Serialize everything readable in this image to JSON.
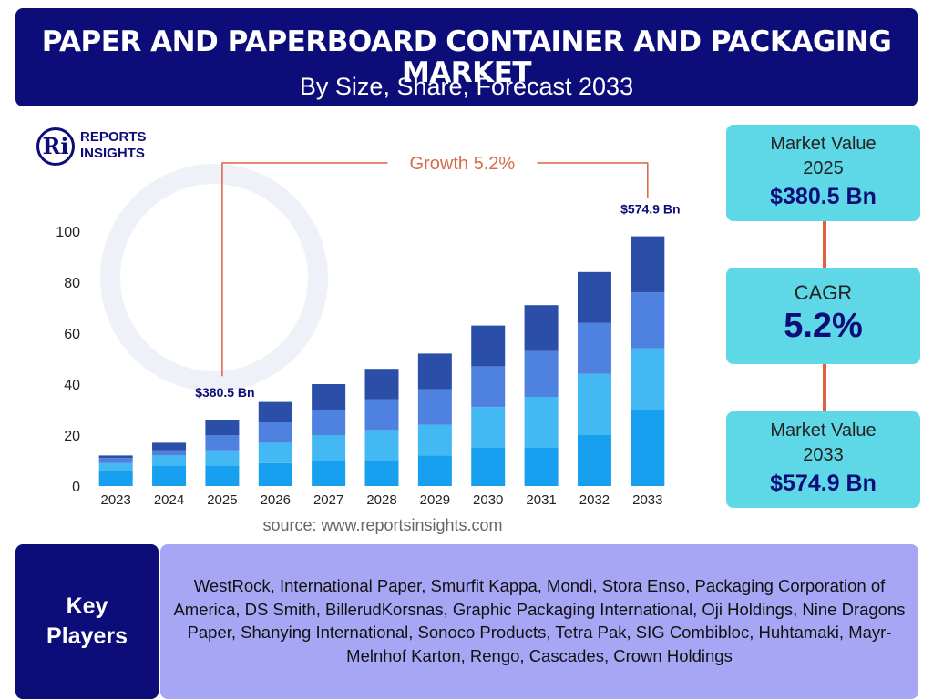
{
  "header": {
    "title": "PAPER AND PAPERBOARD CONTAINER AND PACKAGING MARKET",
    "subtitle": "By Size, Share, Forecast 2033"
  },
  "logo": {
    "mark": "Ri",
    "line1": "REPORTS",
    "line2": "INSIGHTS"
  },
  "colors": {
    "header_bg": "#0d0d7a",
    "stat_box": "#5ed8e6",
    "players_bg": "#a7a6f5",
    "growth_line": "#e06040",
    "series": [
      "#16a0ef",
      "#43b8f2",
      "#4f82e0",
      "#2b4fa8"
    ]
  },
  "chart_data": {
    "type": "bar",
    "stacked": true,
    "categories": [
      "2023",
      "2024",
      "2025",
      "2026",
      "2027",
      "2028",
      "2029",
      "2030",
      "2031",
      "2032",
      "2033"
    ],
    "series": [
      {
        "values": [
          6,
          8,
          8,
          9,
          10,
          10,
          12,
          15,
          15,
          20,
          30
        ]
      },
      {
        "values": [
          3,
          4,
          6,
          8,
          10,
          12,
          12,
          16,
          20,
          24,
          24
        ]
      },
      {
        "values": [
          2,
          2,
          6,
          8,
          10,
          12,
          14,
          16,
          18,
          20,
          22
        ]
      },
      {
        "values": [
          1,
          3,
          6,
          8,
          10,
          12,
          14,
          16,
          18,
          20,
          22
        ]
      }
    ],
    "ylim": [
      0,
      100
    ],
    "yticks": [
      0,
      20,
      40,
      60,
      80,
      100
    ],
    "annotations": [
      {
        "category": "2025",
        "label": "$380.5 Bn"
      },
      {
        "category": "2033",
        "label": "$574.9 Bn"
      }
    ],
    "growth_label": "Growth",
    "growth_value": "5.2%"
  },
  "stats": {
    "market_value_2025_label": "Market Value\n2025",
    "market_value_2025": "$380.5 Bn",
    "cagr_label": "CAGR",
    "cagr": "5.2%",
    "market_value_2033_label": "Market Value\n2033",
    "market_value_2033": "$574.9 Bn"
  },
  "source": "source: www.reportsinsights.com",
  "key_players": {
    "label_line1": "Key",
    "label_line2": "Players",
    "list": "WestRock, International Paper, Smurfit Kappa, Mondi, Stora Enso, Packaging Corporation of America, DS Smith, BillerudKorsnas, Graphic Packaging International, Oji Holdings, Nine Dragons Paper, Shanying International, Sonoco Products, Tetra Pak, SIG Combibloc, Huhtamaki, Mayr-Melnhof Karton, Rengo, Cascades, Crown Holdings"
  }
}
